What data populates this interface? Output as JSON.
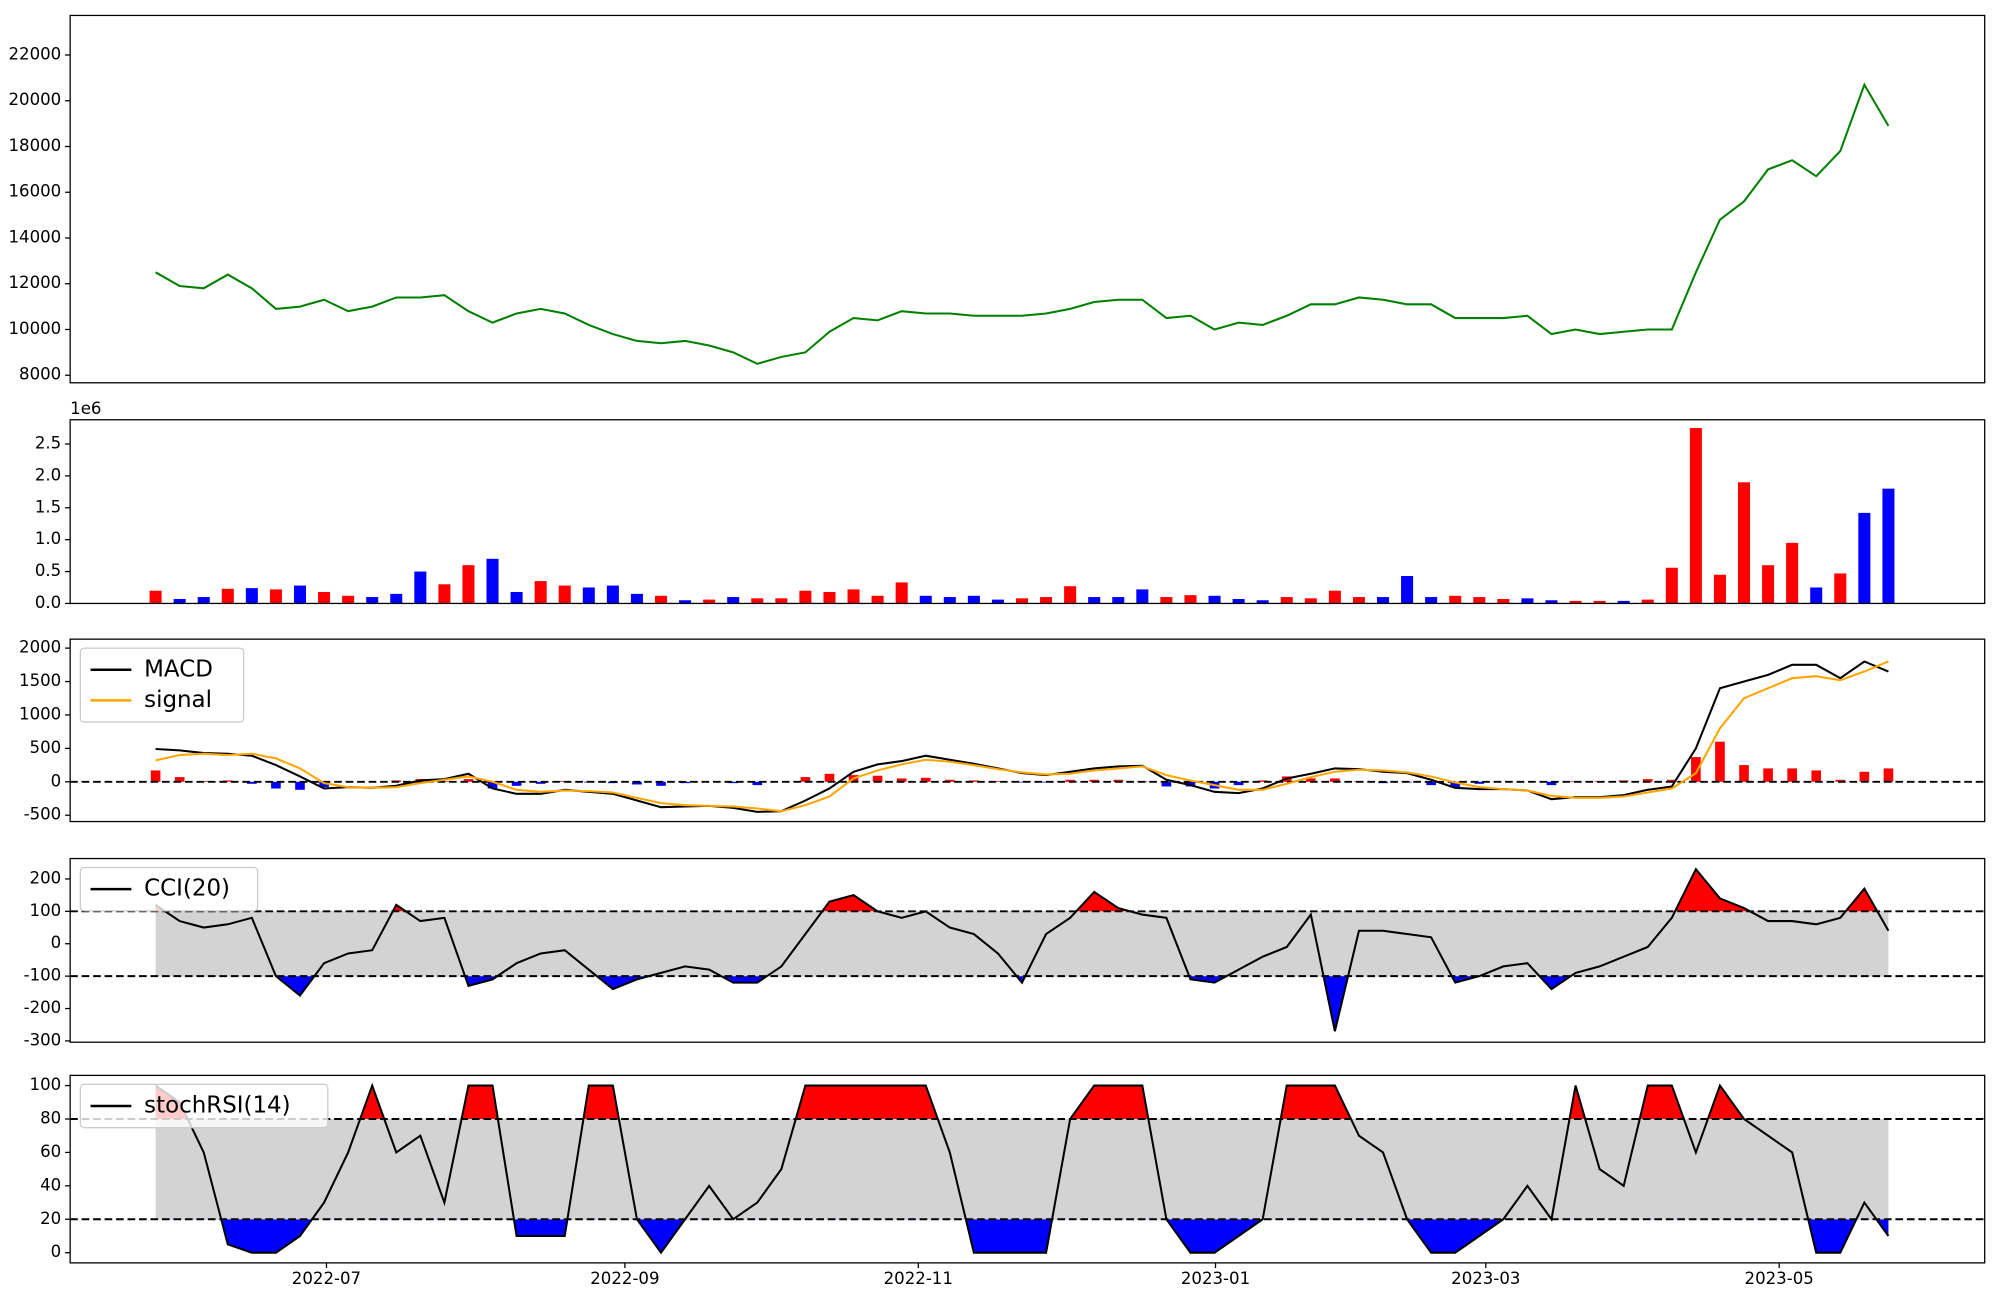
{
  "chart_data": [
    {
      "type": "line",
      "xlim": [
        -3.55,
        76
      ],
      "ylim": [
        7670,
        23730
      ],
      "yticks": [
        8000,
        10000,
        12000,
        14000,
        16000,
        18000,
        20000,
        22000
      ],
      "series": [
        {
          "color": "#008000",
          "values": [
            12500,
            11900,
            11800,
            12400,
            11800,
            10900,
            11000,
            11300,
            10800,
            11000,
            11400,
            11400,
            11500,
            10800,
            10300,
            10700,
            10900,
            10700,
            10200,
            9800,
            9500,
            9400,
            9500,
            9300,
            9000,
            8500,
            8800,
            9000,
            9900,
            10500,
            10400,
            10800,
            10700,
            10700,
            10600,
            10600,
            10600,
            10700,
            10900,
            11200,
            11300,
            11300,
            10500,
            10600,
            10000,
            10300,
            10200,
            10600,
            11100,
            11100,
            11400,
            11300,
            11100,
            11100,
            10500,
            10500,
            10500,
            10600,
            9800,
            10000,
            9800,
            9900,
            10000,
            10000,
            12500,
            14800,
            15600,
            17000,
            17400,
            16700,
            17800,
            20700,
            18900
          ]
        }
      ]
    },
    {
      "type": "bar",
      "offset_text": "1e6",
      "xlim": [
        -3.55,
        76
      ],
      "ylim": [
        0,
        2.88
      ],
      "yticks": [
        {
          "value": 0,
          "label": "0.0"
        },
        0.5,
        {
          "value": 1,
          "label": "1.0"
        },
        1.5,
        {
          "value": 2,
          "label": "2.0"
        },
        2.5
      ],
      "series": [
        {
          "values": [
            0.2,
            0.07,
            0.1,
            0.23,
            0.24,
            0.22,
            0.28,
            0.18,
            0.12,
            0.1,
            0.15,
            0.5,
            0.3,
            0.6,
            0.7,
            0.18,
            0.35,
            0.28,
            0.25,
            0.28,
            0.15,
            0.12,
            0.05,
            0.06,
            0.1,
            0.08,
            0.08,
            0.2,
            0.18,
            0.22,
            0.12,
            0.33,
            0.12,
            0.1,
            0.12,
            0.06,
            0.08,
            0.1,
            0.27,
            0.1,
            0.1,
            0.22,
            0.1,
            0.13,
            0.12,
            0.07,
            0.05,
            0.1,
            0.08,
            0.2,
            0.1,
            0.1,
            0.43,
            0.1,
            0.12,
            0.1,
            0.07,
            0.08,
            0.05,
            0.04,
            0.04,
            0.04,
            0.06,
            0.56,
            2.75,
            0.45,
            1.9,
            0.6,
            0.95,
            0.25,
            0.47,
            1.42,
            1.8
          ],
          "colors": [
            "red",
            "blue",
            "blue",
            "red",
            "blue",
            "red",
            "blue",
            "red",
            "red",
            "blue",
            "blue",
            "blue",
            "red",
            "red",
            "blue",
            "blue",
            "red",
            "red",
            "blue",
            "blue",
            "blue",
            "red",
            "blue",
            "red",
            "blue",
            "red",
            "red",
            "red",
            "red",
            "red",
            "red",
            "red",
            "blue",
            "blue",
            "blue",
            "blue",
            "red",
            "red",
            "red",
            "blue",
            "blue",
            "blue",
            "red",
            "red",
            "blue",
            "blue",
            "blue",
            "red",
            "red",
            "red",
            "red",
            "blue",
            "blue",
            "blue",
            "red",
            "red",
            "red",
            "blue",
            "blue",
            "red",
            "red",
            "blue",
            "red",
            "red",
            "red",
            "red",
            "red",
            "red",
            "red",
            "blue",
            "red",
            "blue",
            "blue"
          ]
        }
      ]
    },
    {
      "type": "macd",
      "xlim": [
        -3.55,
        76
      ],
      "ylim": [
        -595,
        2134
      ],
      "hline": 0,
      "legend": "upper left",
      "yticks": [
        -500,
        0,
        500,
        1000,
        1500,
        2000
      ],
      "histogram": {
        "pos_color": "red",
        "neg_color": "blue",
        "values": [
          170,
          70,
          10,
          20,
          -30,
          -100,
          -120,
          -80,
          0,
          0,
          20,
          40,
          10,
          40,
          -100,
          -60,
          -30,
          10,
          -10,
          -20,
          -40,
          -60,
          -20,
          0,
          -20,
          -50,
          0,
          70,
          120,
          100,
          90,
          50,
          60,
          30,
          20,
          10,
          -10,
          -10,
          30,
          30,
          30,
          10,
          -70,
          -70,
          -100,
          -50,
          20,
          80,
          50,
          50,
          10,
          -20,
          -10,
          -50,
          -80,
          -30,
          0,
          0,
          -50,
          10,
          10,
          20,
          40,
          30,
          370,
          600,
          250,
          200,
          200,
          170,
          30,
          150,
          200
        ]
      },
      "series": [
        {
          "name": "MACD",
          "color": "black",
          "values": [
            490,
            470,
            430,
            420,
            390,
            250,
            80,
            -100,
            -80,
            -90,
            -60,
            20,
            40,
            120,
            -100,
            -180,
            -180,
            -120,
            -150,
            -180,
            -280,
            -380,
            -370,
            -360,
            -390,
            -450,
            -440,
            -280,
            -100,
            150,
            260,
            310,
            390,
            330,
            270,
            200,
            130,
            100,
            150,
            200,
            230,
            240,
            30,
            -50,
            -150,
            -170,
            -100,
            50,
            120,
            200,
            190,
            150,
            130,
            30,
            -90,
            -110,
            -110,
            -130,
            -260,
            -230,
            -230,
            -200,
            -120,
            -70,
            500,
            1400,
            1500,
            1600,
            1750,
            1750,
            1550,
            1800,
            1650
          ]
        },
        {
          "name": "signal",
          "color": "orange",
          "values": [
            320,
            400,
            420,
            400,
            420,
            350,
            200,
            -20,
            -80,
            -90,
            -80,
            -20,
            30,
            80,
            0,
            -120,
            -150,
            -130,
            -140,
            -160,
            -240,
            -320,
            -350,
            -360,
            -370,
            -400,
            -440,
            -350,
            -220,
            50,
            170,
            260,
            330,
            300,
            250,
            190,
            140,
            110,
            120,
            170,
            200,
            230,
            100,
            20,
            -50,
            -120,
            -120,
            -30,
            70,
            150,
            180,
            170,
            140,
            80,
            -10,
            -80,
            -110,
            -130,
            -210,
            -240,
            -240,
            -220,
            -160,
            -100,
            130,
            800,
            1250,
            1400,
            1550,
            1580,
            1520,
            1650,
            1800
          ]
        }
      ]
    },
    {
      "type": "band",
      "xlim": [
        -3.55,
        76
      ],
      "ylim": [
        -304,
        263
      ],
      "legend": "upper left",
      "yticks": [
        -300,
        -200,
        -100,
        0,
        100,
        200
      ],
      "thresholds": [
        -100,
        100
      ],
      "band_color": "lightgray",
      "above_color": "red",
      "below_color": "blue",
      "series": [
        {
          "name": "CCI(20)",
          "color": "black",
          "values": [
            120,
            70,
            50,
            60,
            80,
            -100,
            -160,
            -60,
            -30,
            -20,
            120,
            70,
            80,
            -130,
            -110,
            -60,
            -30,
            -20,
            -80,
            -140,
            -110,
            -90,
            -70,
            -80,
            -120,
            -120,
            -70,
            30,
            130,
            150,
            100,
            80,
            100,
            50,
            30,
            -30,
            -120,
            30,
            80,
            160,
            110,
            90,
            80,
            -110,
            -120,
            -80,
            -40,
            -10,
            90,
            -270,
            40,
            40,
            30,
            20,
            -120,
            -100,
            -70,
            -60,
            -140,
            -90,
            -70,
            -40,
            -10,
            80,
            230,
            140,
            110,
            70,
            70,
            60,
            80,
            170,
            40
          ]
        }
      ]
    },
    {
      "type": "band",
      "xlim": [
        -3.55,
        76
      ],
      "ylim": [
        -6.1,
        106.1
      ],
      "legend": "upper left",
      "yticks": [
        0,
        20,
        40,
        60,
        80,
        100
      ],
      "thresholds": [
        20,
        80
      ],
      "band_color": "lightgray",
      "above_color": "red",
      "below_color": "blue",
      "xticks": [
        {
          "value": 7.1,
          "label": "2022-07"
        },
        {
          "value": 19.5,
          "label": "2022-09"
        },
        {
          "value": 31.69,
          "label": "2022-11"
        },
        {
          "value": 44.04,
          "label": "2023-01"
        },
        {
          "value": 55.27,
          "label": "2023-03"
        },
        {
          "value": 67.46,
          "label": "2023-05"
        }
      ],
      "series": [
        {
          "name": "stochRSI(14)",
          "color": "black",
          "values": [
            100,
            90,
            60,
            5,
            0,
            0,
            10,
            30,
            60,
            100,
            60,
            70,
            30,
            100,
            100,
            10,
            10,
            10,
            100,
            100,
            20,
            0,
            20,
            40,
            20,
            30,
            50,
            100,
            100,
            100,
            100,
            100,
            100,
            60,
            0,
            0,
            0,
            0,
            80,
            100,
            100,
            100,
            20,
            0,
            0,
            10,
            20,
            100,
            100,
            100,
            70,
            60,
            20,
            0,
            0,
            10,
            20,
            40,
            20,
            100,
            50,
            40,
            100,
            100,
            60,
            100,
            80,
            70,
            60,
            0,
            0,
            30,
            10
          ]
        }
      ]
    }
  ]
}
